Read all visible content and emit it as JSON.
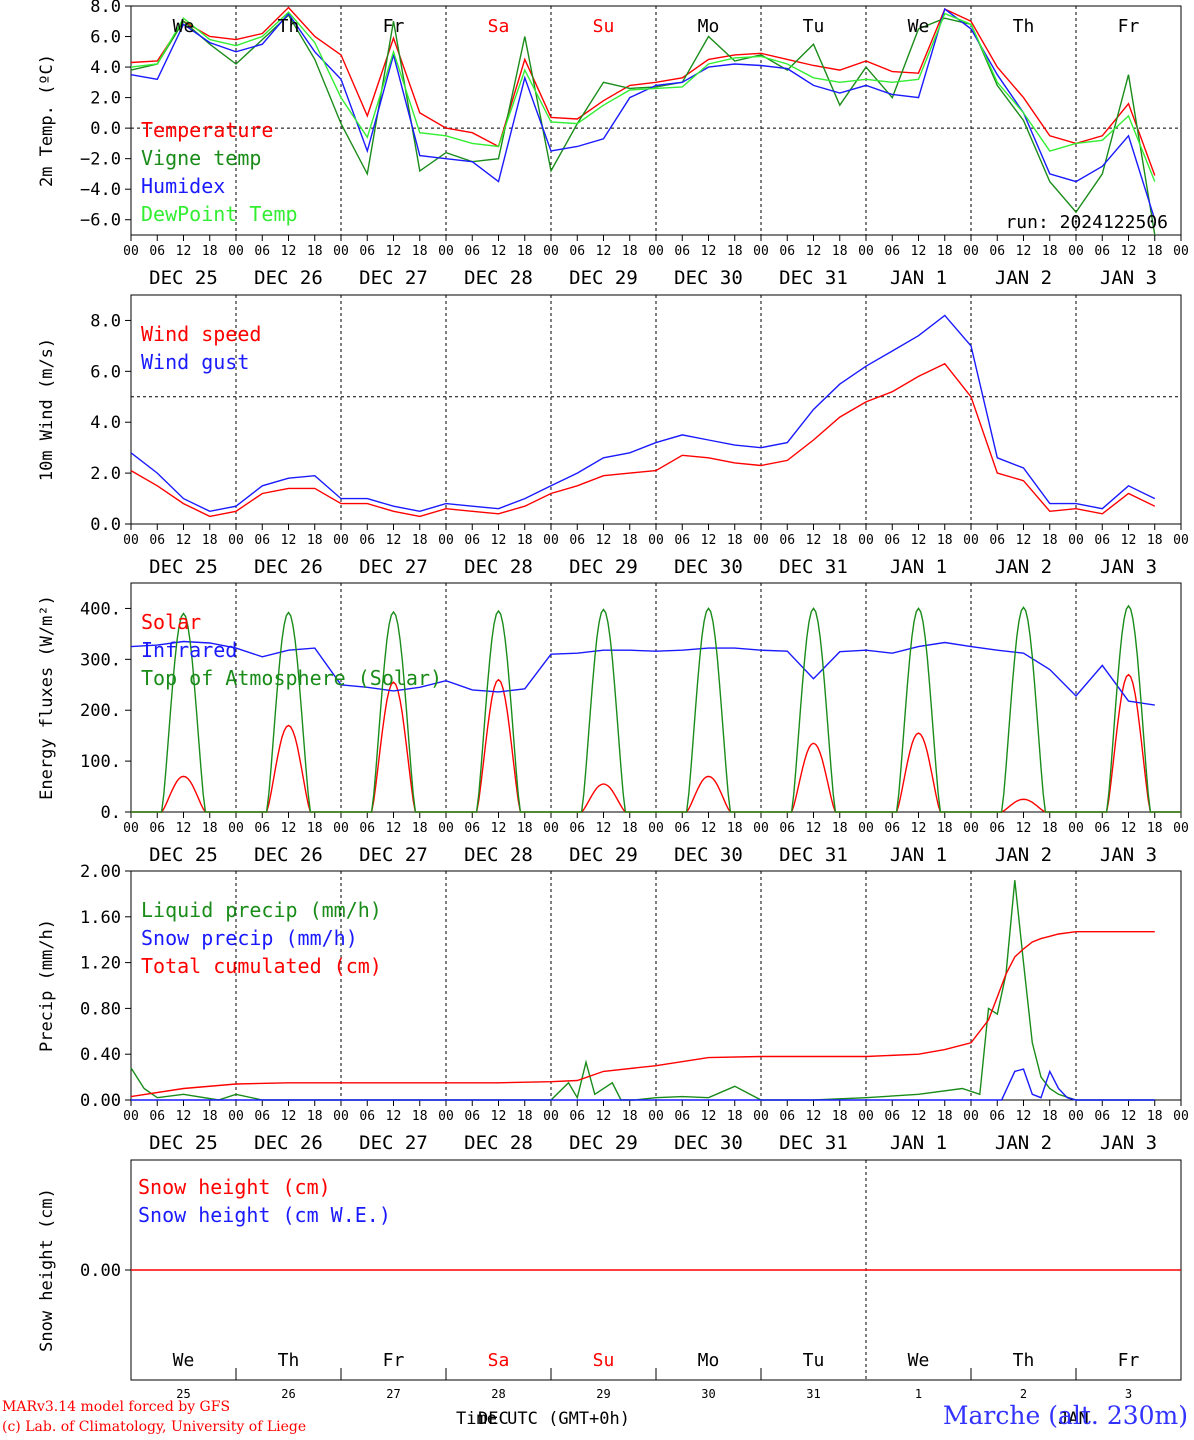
{
  "footer": {
    "credit_line1": "MARv3.14 model forced by GFS",
    "credit_line2": "(c) Lab. of Climatology, University of Liege",
    "station": "Marche (alt. 230m)",
    "xaxis_title": "Time UTC (GMT+0h)",
    "bottom_month_left": "DEC",
    "bottom_month_right": "JAN"
  },
  "colors": {
    "red": "#ff0000",
    "green": "#1a8c1a",
    "blue": "#1a1aff",
    "lightgreen": "#33ee33",
    "axis": "#000000",
    "weekend": "#ff0000"
  },
  "time_axis": {
    "hour_ticks": [
      "00",
      "06",
      "12",
      "18"
    ],
    "dates": [
      "DEC 25",
      "DEC 26",
      "DEC 27",
      "DEC 28",
      "DEC 29",
      "DEC 30",
      "DEC 31",
      "JAN  1",
      "JAN  2",
      "JAN  3"
    ],
    "weekdays": [
      "We",
      "Th",
      "Fr",
      "Sa",
      "Su",
      "Mo",
      "Tu",
      "We",
      "Th",
      "Fr"
    ],
    "weekend_index": [
      3,
      4
    ],
    "day_numbers": [
      "25",
      "26",
      "27",
      "28",
      "29",
      "30",
      "31",
      "1",
      "2",
      "3"
    ]
  },
  "chart_data": [
    {
      "type": "line",
      "ylabel": "2m Temp. (ºC)",
      "ylim": [
        -7.0,
        8.0
      ],
      "yticks": [
        -6.0,
        -4.0,
        -2.0,
        0.0,
        2.0,
        4.0,
        6.0,
        8.0
      ],
      "ytick_labels": [
        "−6.0",
        "−4.0",
        "−2.0",
        "0.0",
        "2.0",
        "4.0",
        "6.0",
        "8.0"
      ],
      "reference_line": 0.0,
      "annotation": "run: 2024122506",
      "legend_position": "left",
      "x_hours": [
        0,
        6,
        12,
        18,
        24,
        30,
        36,
        42,
        48,
        54,
        60,
        66,
        72,
        78,
        84,
        90,
        96,
        102,
        108,
        114,
        120,
        126,
        132,
        138,
        144,
        150,
        156,
        162,
        168,
        174,
        180,
        186,
        192,
        198,
        204,
        210,
        216,
        222,
        228,
        234
      ],
      "series": [
        {
          "name": "Temperature",
          "color": "red",
          "values": [
            4.3,
            4.4,
            7.0,
            6.0,
            5.8,
            6.2,
            7.9,
            6.0,
            4.8,
            0.8,
            5.9,
            1.0,
            0.0,
            -0.3,
            -1.2,
            4.5,
            0.7,
            0.6,
            1.8,
            2.8,
            3.0,
            3.3,
            4.5,
            4.8,
            4.9,
            4.5,
            4.1,
            3.8,
            4.4,
            3.7,
            3.6,
            7.8,
            7.0,
            4.0,
            2.0,
            -0.5,
            -1.0,
            -0.5,
            1.6,
            -3.1
          ]
        },
        {
          "name": "Vigne temp",
          "color": "green",
          "values": [
            3.8,
            4.2,
            7.0,
            5.5,
            4.2,
            5.8,
            7.4,
            4.5,
            0.3,
            -3.0,
            7.0,
            -2.8,
            -1.6,
            -2.2,
            -2.0,
            6.0,
            -2.8,
            0.3,
            3.0,
            2.6,
            2.7,
            3.0,
            6.0,
            4.4,
            4.8,
            3.8,
            5.5,
            1.5,
            4.0,
            2.0,
            6.5,
            7.2,
            6.8,
            2.8,
            0.5,
            -3.5,
            -5.5,
            -3.0,
            3.5,
            -7.0
          ]
        },
        {
          "name": "Humidex",
          "color": "blue",
          "values": [
            3.5,
            3.2,
            6.8,
            5.6,
            5.0,
            5.5,
            7.5,
            5.0,
            3.2,
            -1.5,
            4.8,
            -1.8,
            -2.0,
            -2.2,
            -3.5,
            3.3,
            -1.5,
            -1.2,
            -0.7,
            2.0,
            2.8,
            3.0,
            4.0,
            4.2,
            4.1,
            3.9,
            2.8,
            2.3,
            2.8,
            2.2,
            2.0,
            7.8,
            6.5,
            3.5,
            1.0,
            -3.0,
            -3.5,
            -2.5,
            -0.5,
            -6.0
          ]
        },
        {
          "name": "DewPoint Temp",
          "color": "lightgreen",
          "values": [
            4.0,
            4.2,
            7.2,
            5.8,
            5.4,
            6.0,
            7.6,
            5.6,
            2.0,
            -0.6,
            5.0,
            -0.3,
            -0.5,
            -1.0,
            -1.2,
            3.8,
            0.4,
            0.3,
            1.5,
            2.5,
            2.6,
            2.7,
            4.2,
            4.6,
            4.7,
            4.2,
            3.3,
            3.0,
            3.2,
            3.0,
            3.2,
            7.5,
            6.8,
            3.0,
            1.0,
            -1.5,
            -1.0,
            -0.8,
            0.8,
            -3.5
          ]
        }
      ]
    },
    {
      "type": "line",
      "ylabel": "10m Wind (m/s)",
      "ylim": [
        0.0,
        9.0
      ],
      "yticks": [
        0.0,
        2.0,
        4.0,
        6.0,
        8.0
      ],
      "ytick_labels": [
        "0.0",
        "2.0",
        "4.0",
        "6.0",
        "8.0"
      ],
      "reference_line": 5.0,
      "legend_position": "left",
      "x_hours": [
        0,
        6,
        12,
        18,
        24,
        30,
        36,
        42,
        48,
        54,
        60,
        66,
        72,
        78,
        84,
        90,
        96,
        102,
        108,
        114,
        120,
        126,
        132,
        138,
        144,
        150,
        156,
        162,
        168,
        174,
        180,
        186,
        192,
        198,
        204,
        210,
        216,
        222,
        228,
        234
      ],
      "series": [
        {
          "name": "Wind speed",
          "color": "red",
          "values": [
            2.1,
            1.5,
            0.8,
            0.3,
            0.5,
            1.2,
            1.4,
            1.4,
            0.8,
            0.8,
            0.5,
            0.3,
            0.6,
            0.5,
            0.4,
            0.7,
            1.2,
            1.5,
            1.9,
            2.0,
            2.1,
            2.7,
            2.6,
            2.4,
            2.3,
            2.5,
            3.3,
            4.2,
            4.8,
            5.2,
            5.8,
            6.3,
            5.0,
            2.0,
            1.7,
            0.5,
            0.6,
            0.4,
            1.2,
            0.7
          ]
        },
        {
          "name": "Wind gust",
          "color": "blue",
          "values": [
            2.8,
            2.0,
            1.0,
            0.5,
            0.7,
            1.5,
            1.8,
            1.9,
            1.0,
            1.0,
            0.7,
            0.5,
            0.8,
            0.7,
            0.6,
            1.0,
            1.5,
            2.0,
            2.6,
            2.8,
            3.2,
            3.5,
            3.3,
            3.1,
            3.0,
            3.2,
            4.5,
            5.5,
            6.2,
            6.8,
            7.4,
            8.2,
            7.0,
            2.6,
            2.2,
            0.8,
            0.8,
            0.6,
            1.5,
            1.0
          ]
        }
      ]
    },
    {
      "type": "line",
      "ylabel": "Energy fluxes (W/m²)",
      "ylim": [
        0,
        450
      ],
      "yticks": [
        0,
        100,
        200,
        300,
        400
      ],
      "ytick_labels": [
        "0.",
        "100.",
        "200.",
        "300.",
        "400."
      ],
      "legend_position": "left",
      "solar_day_peaks": [
        70,
        170,
        255,
        260,
        55,
        70,
        135,
        155,
        25,
        270
      ],
      "toa_day_peaks": [
        390,
        392,
        393,
        395,
        398,
        400,
        400,
        400,
        402,
        405
      ],
      "series": [
        {
          "name": "Solar",
          "color": "red",
          "values": [
            70,
            170,
            255,
            260,
            55,
            70,
            135,
            155,
            25,
            270
          ]
        },
        {
          "name": "Infrared",
          "color": "blue",
          "x_hours": [
            0,
            6,
            12,
            18,
            24,
            30,
            36,
            42,
            48,
            54,
            60,
            66,
            72,
            78,
            84,
            90,
            96,
            102,
            108,
            114,
            120,
            126,
            132,
            138,
            144,
            150,
            156,
            162,
            168,
            174,
            180,
            186,
            192,
            198,
            204,
            210,
            216,
            222,
            228,
            234
          ],
          "values": [
            325,
            328,
            335,
            332,
            322,
            305,
            318,
            322,
            250,
            245,
            238,
            245,
            258,
            240,
            236,
            242,
            310,
            312,
            318,
            318,
            316,
            318,
            322,
            322,
            318,
            316,
            262,
            315,
            318,
            312,
            325,
            333,
            325,
            318,
            312,
            280,
            228,
            288,
            218,
            210
          ]
        },
        {
          "name": "Top of Atmosphere (Solar)",
          "color": "green",
          "values": [
            390,
            392,
            393,
            395,
            398,
            400,
            400,
            400,
            402,
            405
          ]
        }
      ]
    },
    {
      "type": "line",
      "ylabel": "Precip (mm/h)",
      "ylim": [
        0.0,
        2.0
      ],
      "yticks": [
        0.0,
        0.4,
        0.8,
        1.2,
        1.6,
        2.0
      ],
      "ytick_labels": [
        "0.00",
        "0.40",
        "0.80",
        "1.20",
        "1.60",
        "2.00"
      ],
      "legend_position": "left",
      "series": [
        {
          "name": "Liquid precip (mm/h)",
          "color": "green",
          "x_hours": [
            0,
            3,
            6,
            12,
            20,
            24,
            30,
            48,
            72,
            96,
            100,
            102,
            104,
            106,
            110,
            112,
            115,
            120,
            126,
            132,
            138,
            144,
            156,
            168,
            180,
            190,
            194,
            196,
            198,
            200,
            202,
            204,
            206,
            208,
            210,
            212,
            216,
            234
          ],
          "values": [
            0.28,
            0.1,
            0.02,
            0.05,
            0.0,
            0.05,
            0.0,
            0.0,
            0.0,
            0.0,
            0.15,
            0.02,
            0.33,
            0.05,
            0.15,
            0.0,
            0.0,
            0.02,
            0.03,
            0.02,
            0.12,
            0.0,
            0.0,
            0.02,
            0.05,
            0.1,
            0.05,
            0.8,
            0.75,
            1.1,
            1.92,
            1.2,
            0.5,
            0.2,
            0.1,
            0.05,
            0.0,
            0.0
          ]
        },
        {
          "name": "Snow precip (mm/h)",
          "color": "blue",
          "x_hours": [
            0,
            199,
            202,
            204,
            206,
            208,
            210,
            212,
            214,
            216,
            234
          ],
          "values": [
            0.0,
            0.0,
            0.25,
            0.27,
            0.05,
            0.02,
            0.25,
            0.1,
            0.02,
            0.0,
            0.0
          ]
        },
        {
          "name": "Total cumulated (cm)",
          "color": "red",
          "x_hours": [
            0,
            12,
            24,
            36,
            48,
            60,
            72,
            84,
            96,
            102,
            108,
            120,
            132,
            144,
            156,
            168,
            180,
            186,
            192,
            196,
            198,
            200,
            202,
            204,
            206,
            208,
            210,
            212,
            216,
            222,
            234
          ],
          "values": [
            0.03,
            0.1,
            0.14,
            0.15,
            0.15,
            0.15,
            0.15,
            0.15,
            0.16,
            0.17,
            0.25,
            0.3,
            0.37,
            0.38,
            0.38,
            0.38,
            0.4,
            0.44,
            0.5,
            0.7,
            0.9,
            1.1,
            1.25,
            1.32,
            1.38,
            1.41,
            1.43,
            1.45,
            1.47,
            1.47,
            1.47
          ]
        }
      ]
    },
    {
      "type": "line",
      "ylabel": "Snow height (cm)",
      "yticks": [
        0.0
      ],
      "ytick_labels": [
        "0.00"
      ],
      "legend_position": "left",
      "series": [
        {
          "name": "Snow height (cm)",
          "color": "red",
          "values": [
            0.0,
            0.0
          ]
        },
        {
          "name": "Snow height (cm W.E.)",
          "color": "blue",
          "values": [
            0.0,
            0.0
          ]
        }
      ]
    }
  ]
}
